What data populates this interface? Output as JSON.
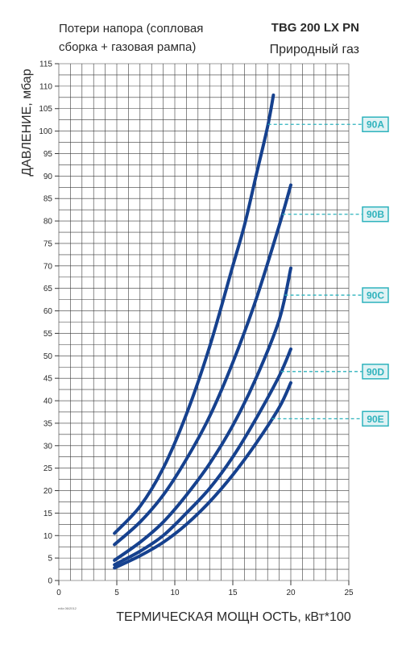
{
  "header": {
    "subtitle": "Потери напора (сопловая\nсборка + газовая рампа)",
    "model": "TBG 200 LX PN",
    "fuel": "Природный газ",
    "edition": "ediz.06/2012"
  },
  "colors": {
    "curve": "#16418e",
    "grid": "#3a3a3a",
    "accent": "#2fb3bd",
    "label_bg": "#dff2f4",
    "axis_text": "#2a2a2a"
  },
  "chart_data": {
    "type": "line",
    "xlabel": "ТЕРМИЧЕСКАЯ МОЩН ОСТЬ, кВт*100",
    "ylabel": "ДАВЛЕНИЕ, мбар",
    "xlim": [
      0,
      25
    ],
    "ylim": [
      0,
      115
    ],
    "x_ticks": [
      0,
      5,
      10,
      15,
      20,
      25
    ],
    "y_ticks": [
      0,
      5,
      10,
      15,
      20,
      25,
      30,
      35,
      40,
      45,
      50,
      55,
      60,
      65,
      70,
      75,
      80,
      85,
      90,
      95,
      100,
      105,
      110,
      115
    ],
    "grid": true,
    "series": [
      {
        "name": "90A",
        "x": [
          4.8,
          7,
          9,
          11,
          13,
          15,
          16,
          17,
          18,
          18.5
        ],
        "y": [
          10.5,
          16.5,
          25,
          37,
          52,
          70,
          79,
          90,
          101,
          108
        ],
        "marker_y": 101.5
      },
      {
        "name": "90B",
        "x": [
          4.8,
          7,
          9,
          11,
          13,
          15,
          17,
          19,
          20
        ],
        "y": [
          8,
          13,
          19,
          27,
          36.5,
          48.5,
          62.5,
          79,
          88
        ],
        "marker_y": 81.5
      },
      {
        "name": "90C",
        "x": [
          4.8,
          7,
          9,
          11,
          13,
          15,
          17,
          19,
          20
        ],
        "y": [
          4.5,
          8.5,
          13,
          19,
          26,
          34.5,
          45,
          58,
          69.5
        ],
        "marker_y": 63.5
      },
      {
        "name": "90D",
        "x": [
          4.8,
          7,
          9,
          11,
          13,
          15,
          17,
          19,
          20
        ],
        "y": [
          3.5,
          6.5,
          10,
          15,
          20.5,
          27.5,
          36,
          45.5,
          51.5
        ],
        "marker_y": 46.5
      },
      {
        "name": "90E",
        "x": [
          4.8,
          7,
          9,
          11,
          13,
          15,
          17,
          19,
          20
        ],
        "y": [
          2.8,
          5.5,
          8.5,
          12.5,
          17.5,
          23.5,
          30.5,
          38.5,
          44
        ],
        "marker_y": 36
      }
    ]
  }
}
